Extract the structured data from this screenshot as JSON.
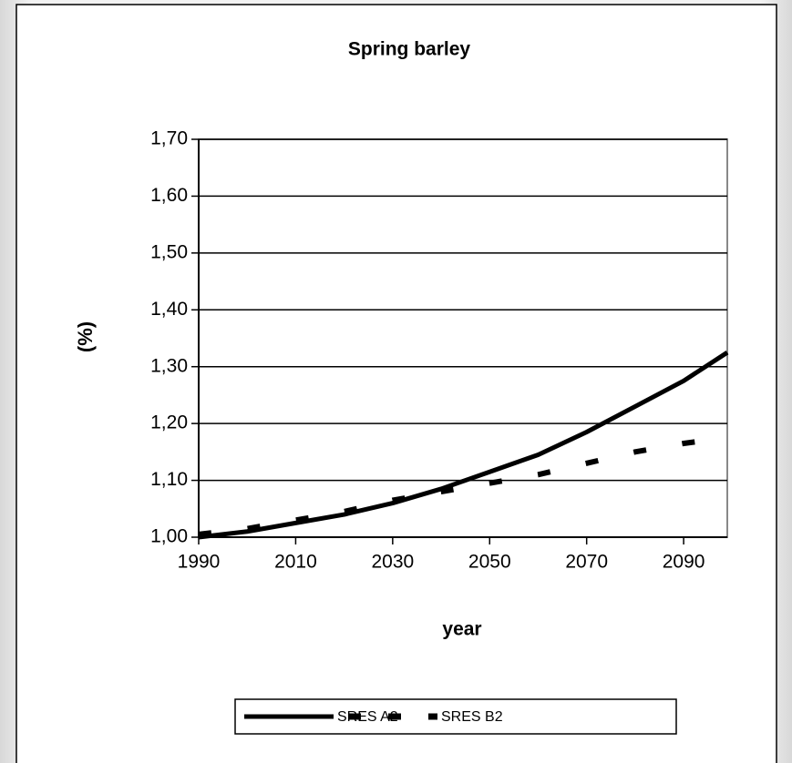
{
  "chart_data": {
    "type": "line",
    "title": "Spring barley",
    "x_label": "year",
    "y_label": "(%)",
    "x": [
      1990,
      2000,
      2010,
      2020,
      2030,
      2040,
      2050,
      2060,
      2070,
      2080,
      2090,
      2099
    ],
    "series": [
      {
        "name": "SRES A2",
        "color": "#000000",
        "dash": false,
        "values": [
          1.0,
          1.01,
          1.025,
          1.04,
          1.06,
          1.085,
          1.115,
          1.145,
          1.185,
          1.23,
          1.275,
          1.325
        ]
      },
      {
        "name": "SRES B2",
        "color": "#000000",
        "dash": true,
        "values": [
          1.005,
          1.015,
          1.03,
          1.045,
          1.065,
          1.08,
          1.095,
          1.11,
          1.13,
          1.15,
          1.165,
          1.175
        ]
      }
    ],
    "xlim": [
      1990,
      2099
    ],
    "xticks": [
      1990,
      2010,
      2030,
      2050,
      2070,
      2090
    ],
    "ylim": [
      1.0,
      1.7
    ],
    "yticks": [
      {
        "value": 1.0,
        "label": "1,00"
      },
      {
        "value": 1.1,
        "label": "1,10"
      },
      {
        "value": 1.2,
        "label": "1,20"
      },
      {
        "value": 1.3,
        "label": "1,30"
      },
      {
        "value": 1.4,
        "label": "1,40"
      },
      {
        "value": 1.5,
        "label": "1,50"
      },
      {
        "value": 1.6,
        "label": "1,60"
      },
      {
        "value": 1.7,
        "label": "1,70"
      }
    ],
    "grid": true,
    "legend": "bottom"
  }
}
